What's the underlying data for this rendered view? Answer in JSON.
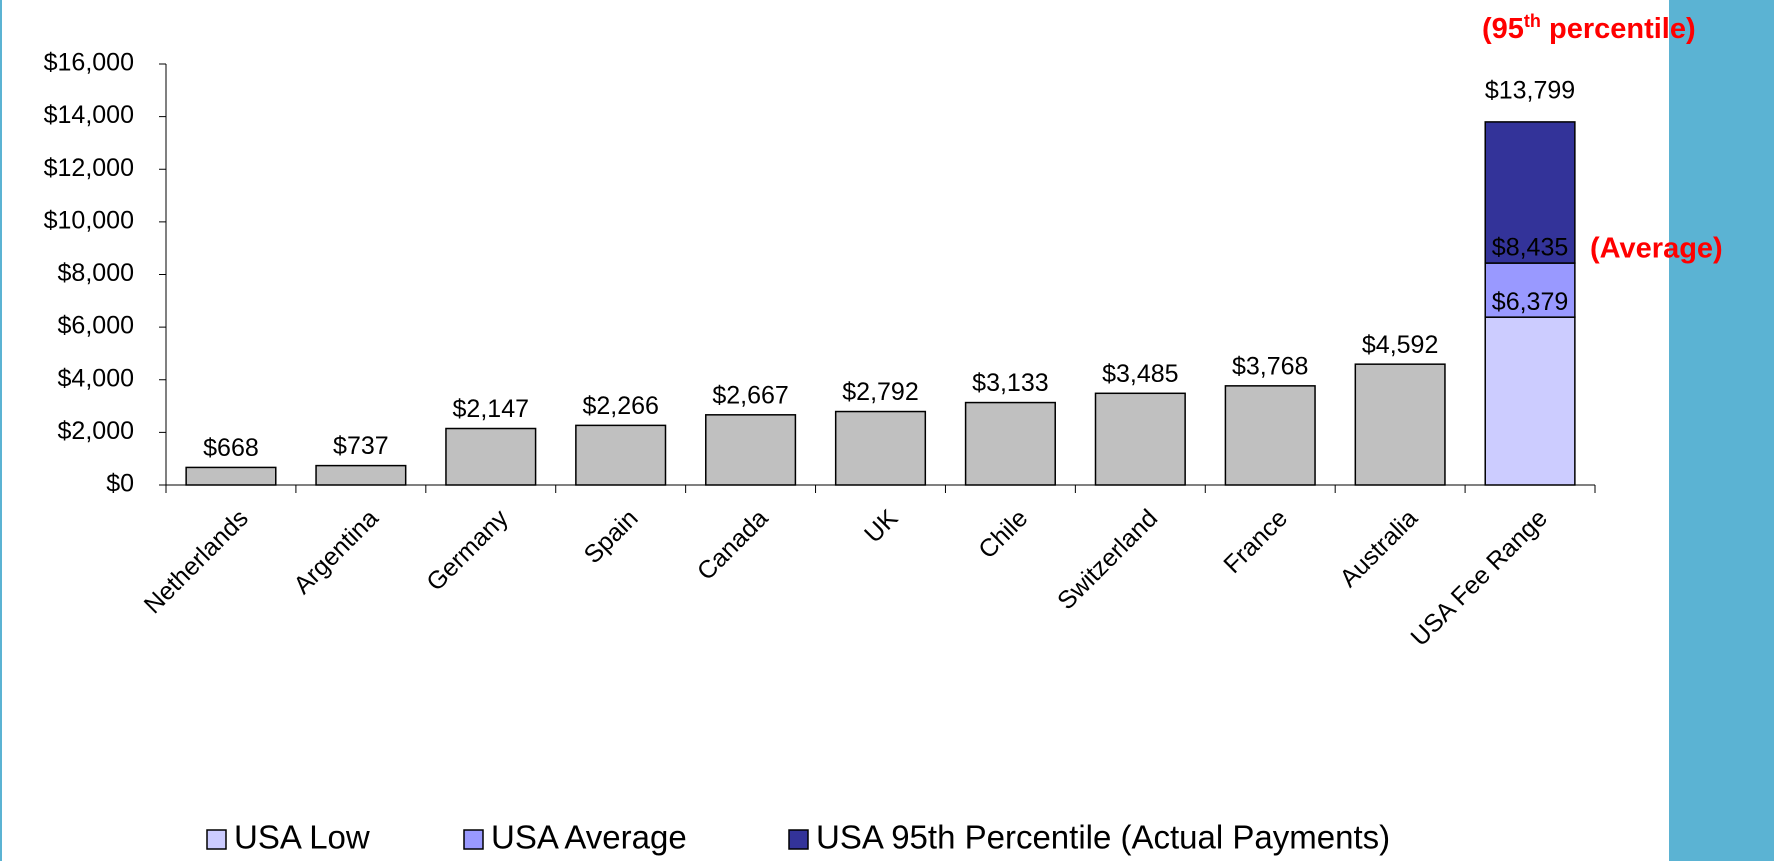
{
  "chart_data": {
    "type": "bar",
    "categories": [
      "Netherlands",
      "Argentina",
      "Germany",
      "Spain",
      "Canada",
      "UK",
      "Chile",
      "Switzerland",
      "France",
      "Australia",
      "USA Fee Range"
    ],
    "values": [
      668,
      737,
      2147,
      2266,
      2667,
      2792,
      3133,
      3485,
      3768,
      4592,
      null
    ],
    "value_labels": [
      "$668",
      "$737",
      "$2,147",
      "$2,266",
      "$2,667",
      "$2,792",
      "$3,133",
      "$3,485",
      "$3,768",
      "$4,592",
      null
    ],
    "color": "#c0c0c0",
    "series": [
      {
        "name": "USA Low",
        "color": "#ccccff",
        "values": [
          null,
          null,
          null,
          null,
          null,
          null,
          null,
          null,
          null,
          null,
          6379
        ]
      },
      {
        "name": "USA Average",
        "color": "#9999ff",
        "values": [
          null,
          null,
          null,
          null,
          null,
          null,
          null,
          null,
          null,
          null,
          2056
        ]
      },
      {
        "name": "USA 95th Percentile (Actual Payments)",
        "color": "#333399",
        "values": [
          null,
          null,
          null,
          null,
          null,
          null,
          null,
          null,
          null,
          null,
          5364
        ]
      }
    ],
    "level_labels": [
      {
        "value": 6379,
        "label": "$6,379"
      },
      {
        "value": 8435,
        "label": "$8,435"
      },
      {
        "value": 13799,
        "label": "$13,799"
      }
    ],
    "annotations": {
      "percentile": [
        "(95",
        "th",
        " percentile)"
      ],
      "average": "(Average)"
    },
    "ylim": [
      0,
      16000
    ],
    "yticks": [
      {
        "value": 0,
        "label": "$0"
      },
      {
        "value": 2000,
        "label": "$2,000"
      },
      {
        "value": 4000,
        "label": "$4,000"
      },
      {
        "value": 6000,
        "label": "$6,000"
      },
      {
        "value": 8000,
        "label": "$8,000"
      },
      {
        "value": 10000,
        "label": "$10,000"
      },
      {
        "value": 12000,
        "label": "$12,000"
      },
      {
        "value": 14000,
        "label": "$14,000"
      },
      {
        "value": 16000,
        "label": "$16,000"
      }
    ],
    "grid": false
  }
}
